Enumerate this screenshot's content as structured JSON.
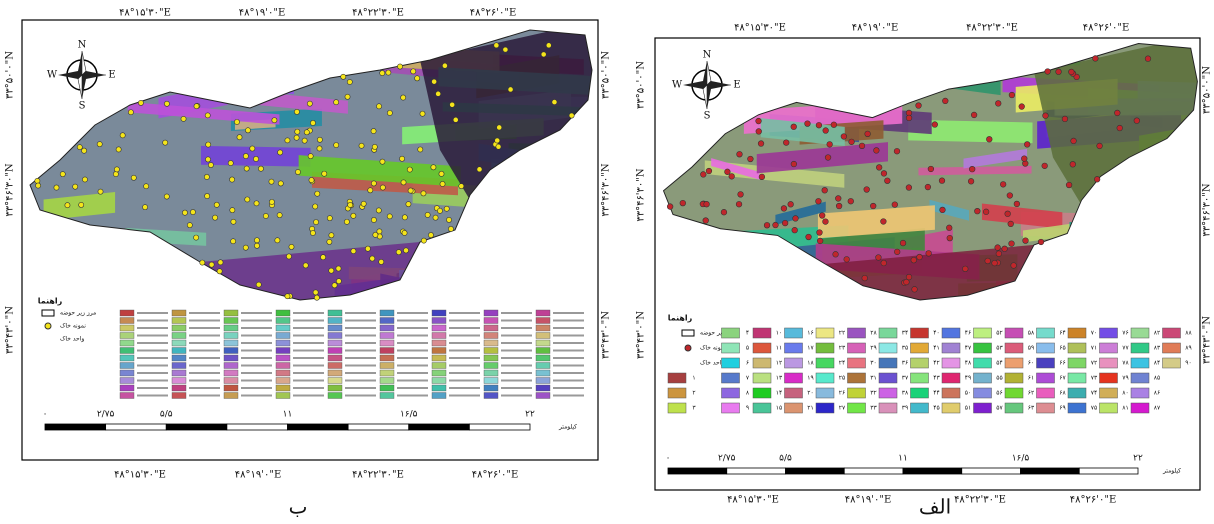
{
  "maps": [
    {
      "caption": "ب",
      "top_labels": [
        "۴۸°۱۵'۳۰\"E",
        "۴۸°۱۹'۰\"E",
        "۴۸°۲۲'۳۰\"E",
        "۴۸°۲۶'۰\"E"
      ],
      "bottom_labels": [
        "۴۸°۱۵'۳۰\"E",
        "۴۸°۱۹'۰\"E",
        "۴۸°۲۲'۳۰\"E",
        "۴۸°۲۶'۰\"E"
      ],
      "left_labels": [
        "۳۳°۵۰'۰\"N",
        "۳۳°۴۶'۳۰\"N",
        "۳۳°۴۳'۰\"N"
      ],
      "right_labels": [
        "۳۳°۵۰'۰\"N",
        "۳۳°۴۶'۳۰\"N",
        "۳۳°۴۳'۰\"N"
      ],
      "compass": {
        "n": "N",
        "s": "S",
        "e": "E",
        "w": "W"
      },
      "legend": {
        "title": "راهنما",
        "items": [
          "مرز زیر حوضه",
          "نمونه خاک",
          "واحد خاک"
        ]
      },
      "scale": {
        "ticks": [
          "۰",
          "۲/۷۵",
          "۵/۵",
          "۱۱",
          "۱۶/۵",
          "۲۲"
        ],
        "unit": "کیلومتر"
      }
    },
    {
      "caption": "الف",
      "top_labels": [
        "۴۸°۱۵'۳۰\"E",
        "۴۸°۱۹'۰\"E",
        "۴۸°۲۲'۳۰\"E",
        "۴۸°۲۶'۰\"E"
      ],
      "bottom_labels": [
        "۴۸°۱۵'۳۰\"E",
        "۴۸°۱۹'۰\"E",
        "۴۸°۲۲'۳۰\"E",
        "۴۸°۲۶'۰\"E"
      ],
      "left_labels": [
        "۳۳°۵۰'۰\"N",
        "۳۳°۴۶'۳۰\"N",
        "۳۳°۴۳'۰\"N"
      ],
      "right_labels": [
        "۳۳°۵۰'۰\"N",
        "۳۳°۴۶'۳۰\"N",
        "۳۳°۴۳'۰\"N"
      ],
      "compass": {
        "n": "N",
        "s": "S",
        "e": "E",
        "w": "W"
      },
      "legend": {
        "title": "راهنما",
        "items": [
          "مرز زیر حوضه",
          "نمونه خاک",
          "واحد خاک"
        ],
        "units": [
          "۱",
          "۲",
          "۳",
          "۴",
          "۵",
          "۶",
          "۷",
          "۸",
          "۹",
          "۱۰",
          "۱۱",
          "۱۲",
          "۱۳",
          "۱۴",
          "۱۵",
          "۱۶",
          "۱۷",
          "۱۸",
          "۱۹",
          "۲۰",
          "۲۱",
          "۲۲",
          "۲۳",
          "۲۴",
          "۲۵",
          "۲۶",
          "۲۷",
          "۲۸",
          "۲۹",
          "۳۰",
          "۳۱",
          "۳۲",
          "۳۳",
          "۳۴",
          "۳۵",
          "۳۶",
          "۳۷",
          "۳۸",
          "۳۹",
          "۴۰",
          "۴۱",
          "۴۲",
          "۴۳",
          "۴۴",
          "۴۵",
          "۴۶",
          "۴۷",
          "۴۸",
          "۴۹",
          "۵۰",
          "۵۱",
          "۵۲",
          "۵۳",
          "۵۴",
          "۵۵",
          "۵۶",
          "۵۷",
          "۵۸",
          "۵۹",
          "۶۰",
          "۶۱",
          "۶۲",
          "۶۳",
          "۶۴",
          "۶۵",
          "۶۶",
          "۶۷",
          "۶۸",
          "۶۹",
          "۷۰",
          "۷۱",
          "۷۲",
          "۷۳",
          "۷۴",
          "۷۵",
          "۷۶",
          "۷۷",
          "۷۸",
          "۷۹",
          "۸۰",
          "۸۱",
          "۸۲",
          "۸۳",
          "۸۴",
          "۸۵",
          "۸۶",
          "۸۷",
          "۸۸",
          "۸۹",
          "۹۰"
        ]
      },
      "scale": {
        "ticks": [
          "۰",
          "۲/۷۵",
          "۵/۵",
          "۱۱",
          "۱۶/۵",
          "۲۲"
        ],
        "unit": "کیلومتر"
      }
    }
  ]
}
